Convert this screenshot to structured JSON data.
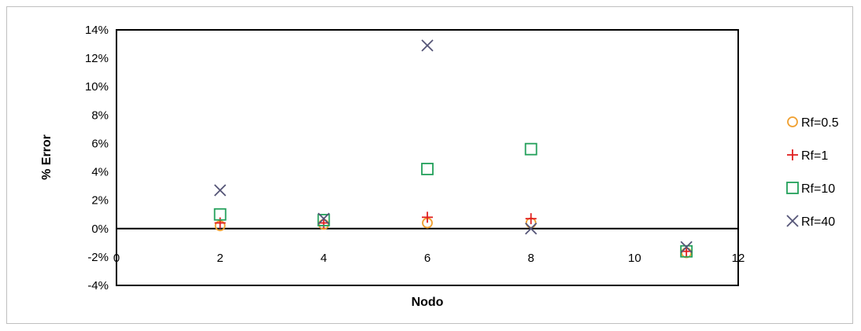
{
  "chart_data": {
    "type": "scatter",
    "title": "",
    "xlabel": "Nodo",
    "ylabel": "% Error",
    "xlim": [
      0,
      12
    ],
    "ylim": [
      -4,
      14
    ],
    "x_ticks": [
      0,
      2,
      4,
      6,
      8,
      10,
      12
    ],
    "y_ticks": [
      "14%",
      "12%",
      "10%",
      "8%",
      "6%",
      "4%",
      "2%",
      "0%",
      "-2%",
      "-4%"
    ],
    "y_tick_values": [
      14,
      12,
      10,
      8,
      6,
      4,
      2,
      0,
      -2,
      -4
    ],
    "grid": false,
    "legend_position": "right",
    "series": [
      {
        "name": "Rf=0.5",
        "marker": "circle",
        "color": "#F0A030",
        "x": [
          2,
          4,
          6,
          8,
          11
        ],
        "y": [
          0.2,
          0.3,
          0.4,
          0.4,
          -1.7
        ]
      },
      {
        "name": "Rf=1",
        "marker": "plus",
        "color": "#E02020",
        "x": [
          2,
          4,
          6,
          8,
          11
        ],
        "y": [
          0.4,
          0.4,
          0.8,
          0.7,
          -1.6
        ]
      },
      {
        "name": "Rf=10",
        "marker": "square",
        "color": "#22A05A",
        "x": [
          2,
          4,
          6,
          8,
          11
        ],
        "y": [
          1.0,
          0.6,
          4.2,
          5.6,
          -1.6
        ]
      },
      {
        "name": "Rf=40",
        "marker": "x",
        "color": "#555577",
        "x": [
          2,
          4,
          6,
          8,
          11
        ],
        "y": [
          2.7,
          0.7,
          12.9,
          0.0,
          -1.3
        ]
      }
    ]
  }
}
